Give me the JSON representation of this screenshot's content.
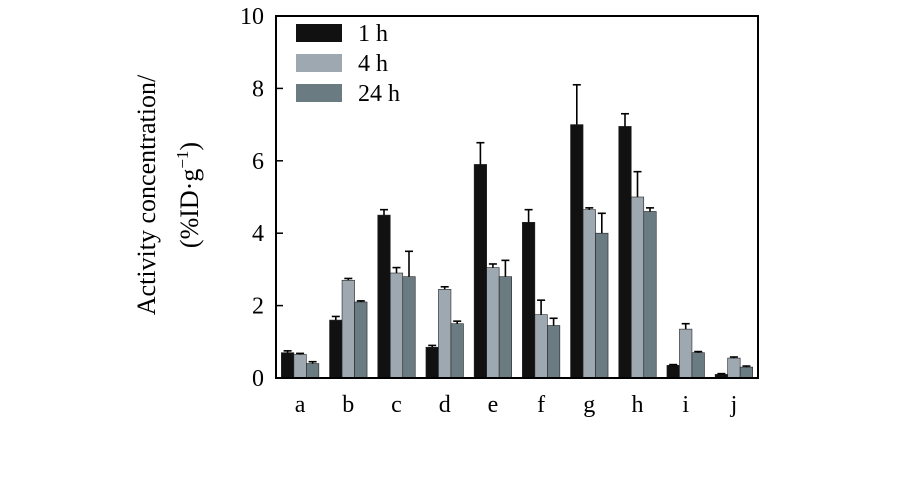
{
  "chart_data": {
    "type": "bar",
    "title": "",
    "xlabel": "",
    "ylabel": "Activity concentration/",
    "ylabel_line2": "(%ID·g",
    "ylabel_sup": "−1",
    "ylabel_close": ")",
    "ylim": [
      0,
      10
    ],
    "yticks": [
      0,
      2,
      4,
      6,
      8,
      10
    ],
    "grid": false,
    "legend_position": "top-left",
    "categories": [
      "a",
      "b",
      "c",
      "d",
      "e",
      "f",
      "g",
      "h",
      "i",
      "j"
    ],
    "series": [
      {
        "name": "1 h",
        "color": "#111111",
        "values": [
          0.7,
          1.6,
          4.5,
          0.85,
          5.9,
          4.3,
          7.0,
          6.95,
          0.35,
          0.1
        ],
        "errors": [
          0.05,
          0.1,
          0.15,
          0.05,
          0.6,
          0.35,
          1.1,
          0.35,
          0.02,
          0.02
        ]
      },
      {
        "name": "4 h",
        "color": "#9ea8b0",
        "values": [
          0.65,
          2.7,
          2.9,
          2.45,
          3.05,
          1.75,
          4.65,
          5.0,
          1.35,
          0.55
        ],
        "errors": [
          0.03,
          0.05,
          0.15,
          0.07,
          0.1,
          0.4,
          0.05,
          0.7,
          0.15,
          0.03
        ]
      },
      {
        "name": "24 h",
        "color": "#6b7b82",
        "values": [
          0.4,
          2.1,
          2.8,
          1.5,
          2.8,
          1.45,
          4.0,
          4.6,
          0.7,
          0.3
        ],
        "errors": [
          0.05,
          0.03,
          0.7,
          0.07,
          0.45,
          0.2,
          0.55,
          0.1,
          0.03,
          0.03
        ]
      }
    ]
  }
}
